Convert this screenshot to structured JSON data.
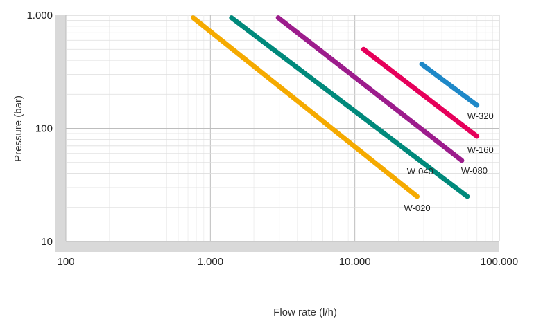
{
  "chart_data": {
    "type": "line",
    "xlabel": "Flow rate (l/h)",
    "ylabel": "Pressure  (bar)",
    "x_scale": "log",
    "y_scale": "log",
    "xlim": [
      100,
      100000
    ],
    "ylim": [
      10,
      1000
    ],
    "x_ticks": [
      {
        "value": 100,
        "label": "100"
      },
      {
        "value": 1000,
        "label": "1.000"
      },
      {
        "value": 10000,
        "label": "10.000"
      },
      {
        "value": 100000,
        "label": "100.000"
      }
    ],
    "y_ticks": [
      {
        "value": 1000,
        "label": "1.000"
      },
      {
        "value": 100,
        "label": "100"
      },
      {
        "value": 10,
        "label": "10"
      }
    ],
    "grid": true,
    "series": [
      {
        "name": "W-020",
        "color": "#F5AA00",
        "x": [
          760,
          27000
        ],
        "y": [
          950,
          25
        ]
      },
      {
        "name": "W-040",
        "color": "#00897B",
        "x": [
          1400,
          60000
        ],
        "y": [
          950,
          25
        ]
      },
      {
        "name": "W-080",
        "color": "#9C1C8C",
        "x": [
          2950,
          55000
        ],
        "y": [
          950,
          52
        ]
      },
      {
        "name": "W-160",
        "color": "#E6005A",
        "x": [
          11500,
          70000
        ],
        "y": [
          500,
          85
        ]
      },
      {
        "name": "W-320",
        "color": "#1E88C8",
        "x": [
          29000,
          70000
        ],
        "y": [
          370,
          160
        ]
      }
    ]
  }
}
